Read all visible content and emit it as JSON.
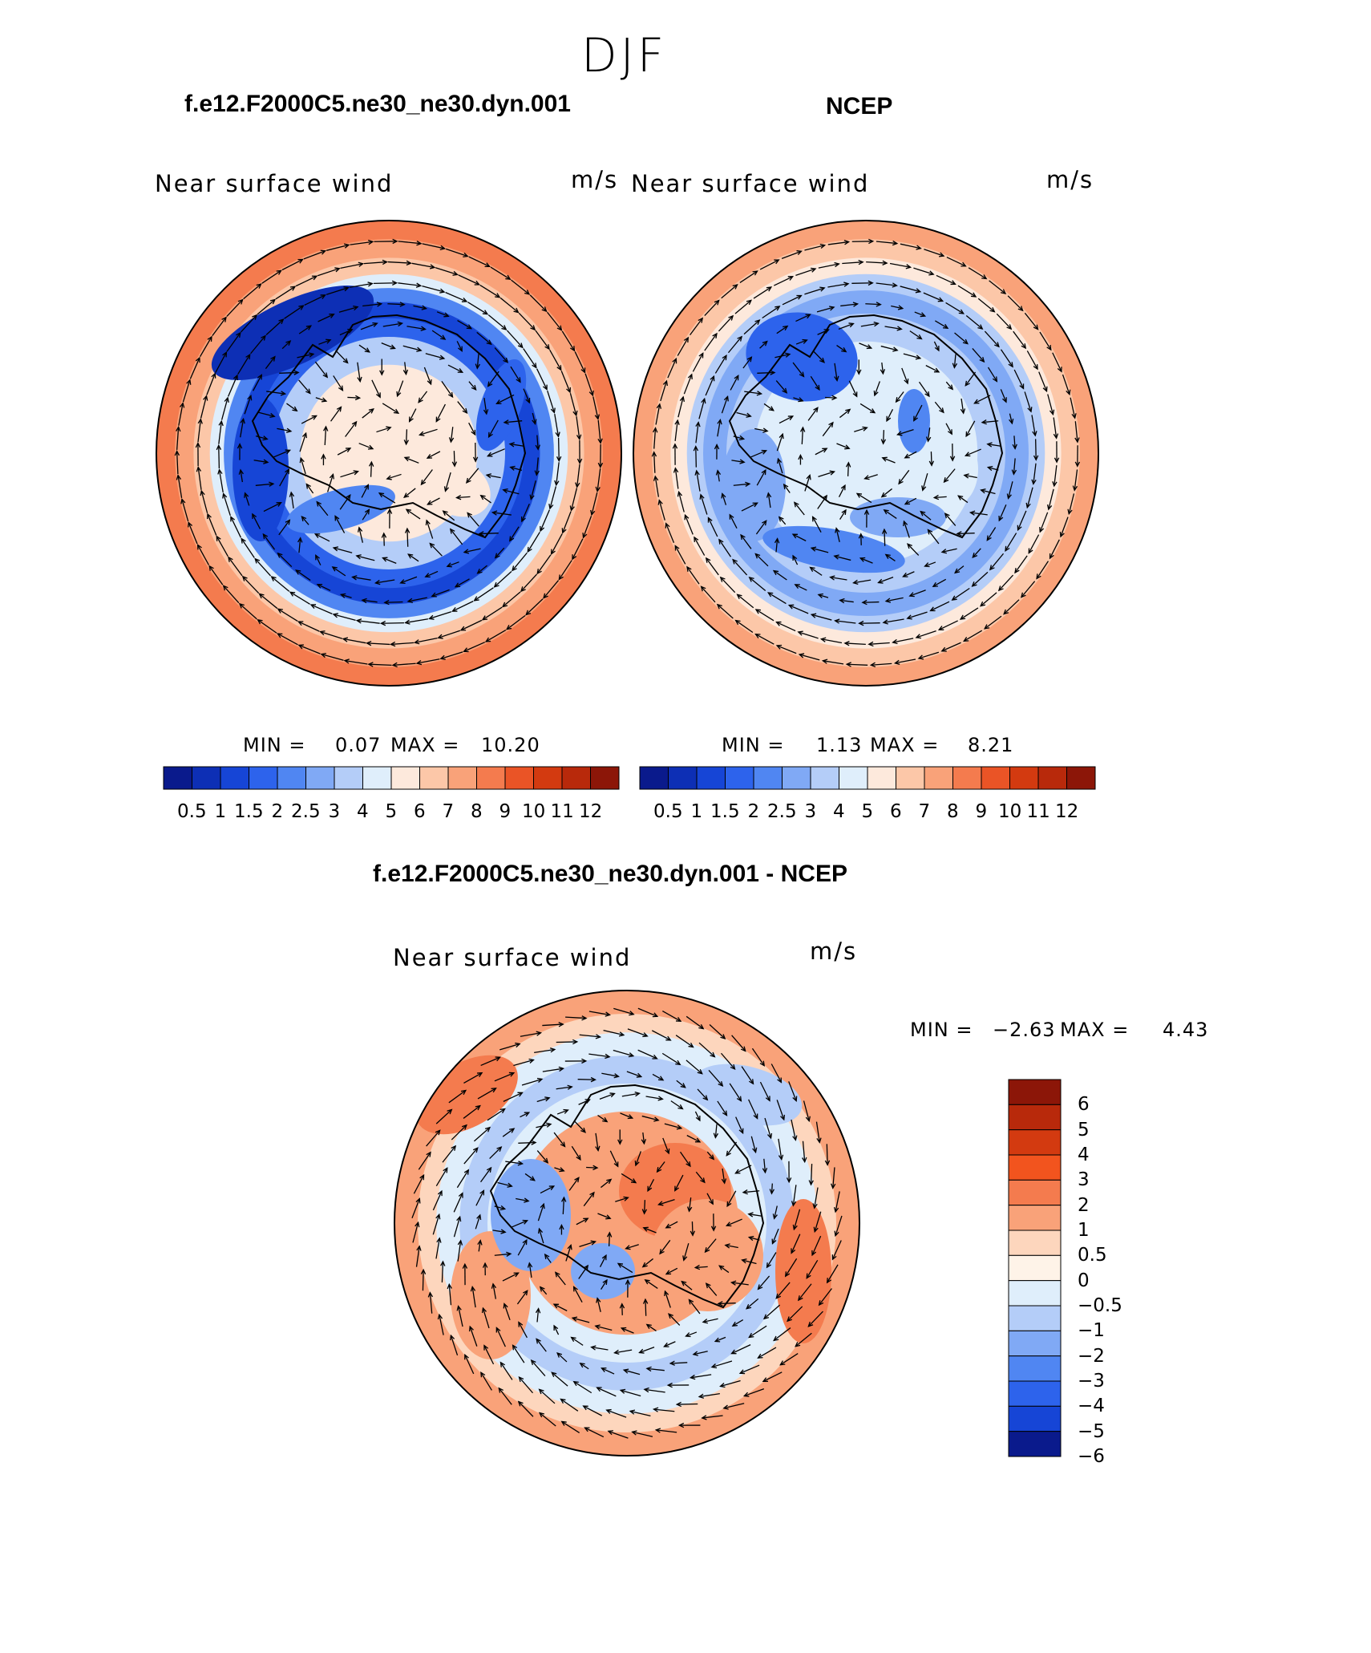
{
  "figure": {
    "season": "DJF"
  },
  "panels": [
    {
      "id": "model",
      "title": "f.e12.F2000C5.ne30_ne30.dyn.001",
      "variable": "Near surface wind",
      "units": "m/s",
      "min_label": "MIN =",
      "min": "0.07",
      "max_label": "MAX =",
      "max": "10.20"
    },
    {
      "id": "obs",
      "title": "NCEP",
      "variable": "Near surface wind",
      "units": "m/s",
      "min_label": "MIN =",
      "min": "1.13",
      "max_label": "MAX =",
      "max": "8.21"
    },
    {
      "id": "diff",
      "title": "f.e12.F2000C5.ne30_ne30.dyn.001 - NCEP",
      "variable": "Near surface wind",
      "units": "m/s",
      "min_label": "MIN =",
      "min": "−2.63",
      "max_label": "MAX =",
      "max": "4.43"
    }
  ],
  "colorbars": {
    "absolute": {
      "colors": [
        "#0a1a8c",
        "#0d2fb5",
        "#1645d6",
        "#2d63ec",
        "#5086f2",
        "#80a9f5",
        "#b4cdf8",
        "#dfeefb",
        "#fde9dc",
        "#fcc7a8",
        "#f9a279",
        "#f47b4e",
        "#ea5426",
        "#d33a10",
        "#b8290b",
        "#8c1608"
      ],
      "labels": [
        "0.5",
        "1",
        "1.5",
        "2",
        "2.5",
        "3",
        "4",
        "5",
        "6",
        "7",
        "8",
        "9",
        "10",
        "11",
        "12"
      ]
    },
    "difference": {
      "colors": [
        "#8c1608",
        "#b8290b",
        "#d33a10",
        "#f2541e",
        "#f47b4e",
        "#f9a279",
        "#fdd6bd",
        "#fef3e8",
        "#dfeefb",
        "#b4cdf8",
        "#80a9f5",
        "#5086f2",
        "#2d63ec",
        "#1645d6",
        "#0a1a8c"
      ],
      "labels": [
        "6",
        "5",
        "4",
        "3",
        "2",
        "1",
        "0.5",
        "0",
        "−0.5",
        "−1",
        "−2",
        "−3",
        "−4",
        "−5",
        "−6"
      ]
    }
  }
}
